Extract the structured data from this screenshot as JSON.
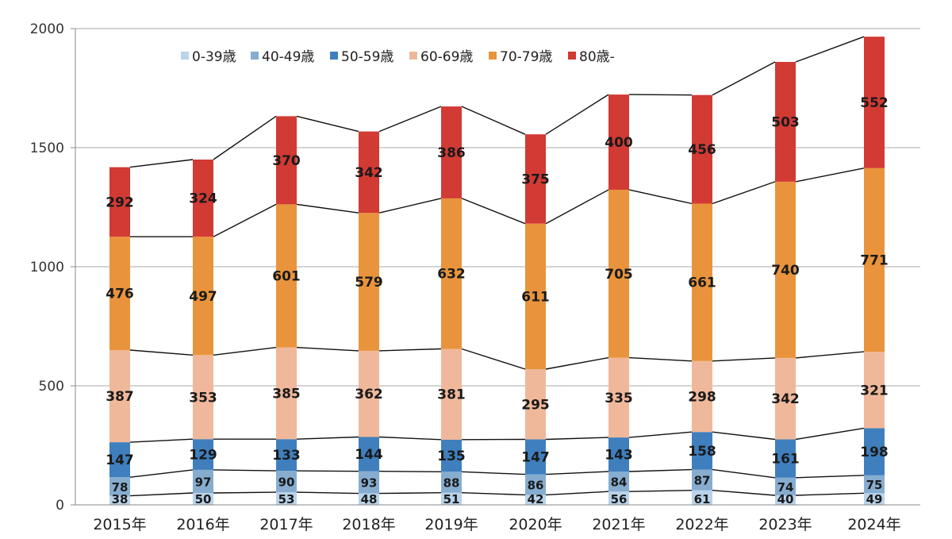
{
  "chart_data": {
    "type": "bar",
    "stacked": true,
    "title": "",
    "xlabel": "",
    "ylabel": "",
    "ylim": [
      0,
      2000
    ],
    "yticks": [
      0,
      500,
      1000,
      1500,
      2000
    ],
    "grid": true,
    "legend_position": "top-left",
    "series_lines": true,
    "categories": [
      "2015年",
      "2016年",
      "2017年",
      "2018年",
      "2019年",
      "2020年",
      "2021年",
      "2022年",
      "2023年",
      "2024年"
    ],
    "series": [
      {
        "name": "0-39歳",
        "color": "#b9d3ea",
        "values": [
          38,
          50,
          53,
          48,
          51,
          42,
          56,
          61,
          40,
          49
        ]
      },
      {
        "name": "40-49歳",
        "color": "#86add0",
        "values": [
          78,
          97,
          90,
          93,
          88,
          86,
          84,
          87,
          74,
          75
        ]
      },
      {
        "name": "50-59歳",
        "color": "#3f7fbe",
        "values": [
          147,
          129,
          133,
          144,
          135,
          147,
          143,
          158,
          161,
          198
        ]
      },
      {
        "name": "60-69歳",
        "color": "#f0b89a",
        "values": [
          387,
          353,
          385,
          362,
          381,
          295,
          335,
          298,
          342,
          321
        ]
      },
      {
        "name": "70-79歳",
        "color": "#e9943c",
        "values": [
          476,
          497,
          601,
          579,
          632,
          611,
          705,
          661,
          740,
          771
        ]
      },
      {
        "name": "80歳-",
        "color": "#d23a34",
        "values": [
          292,
          324,
          370,
          342,
          386,
          375,
          400,
          456,
          503,
          552
        ]
      }
    ]
  }
}
